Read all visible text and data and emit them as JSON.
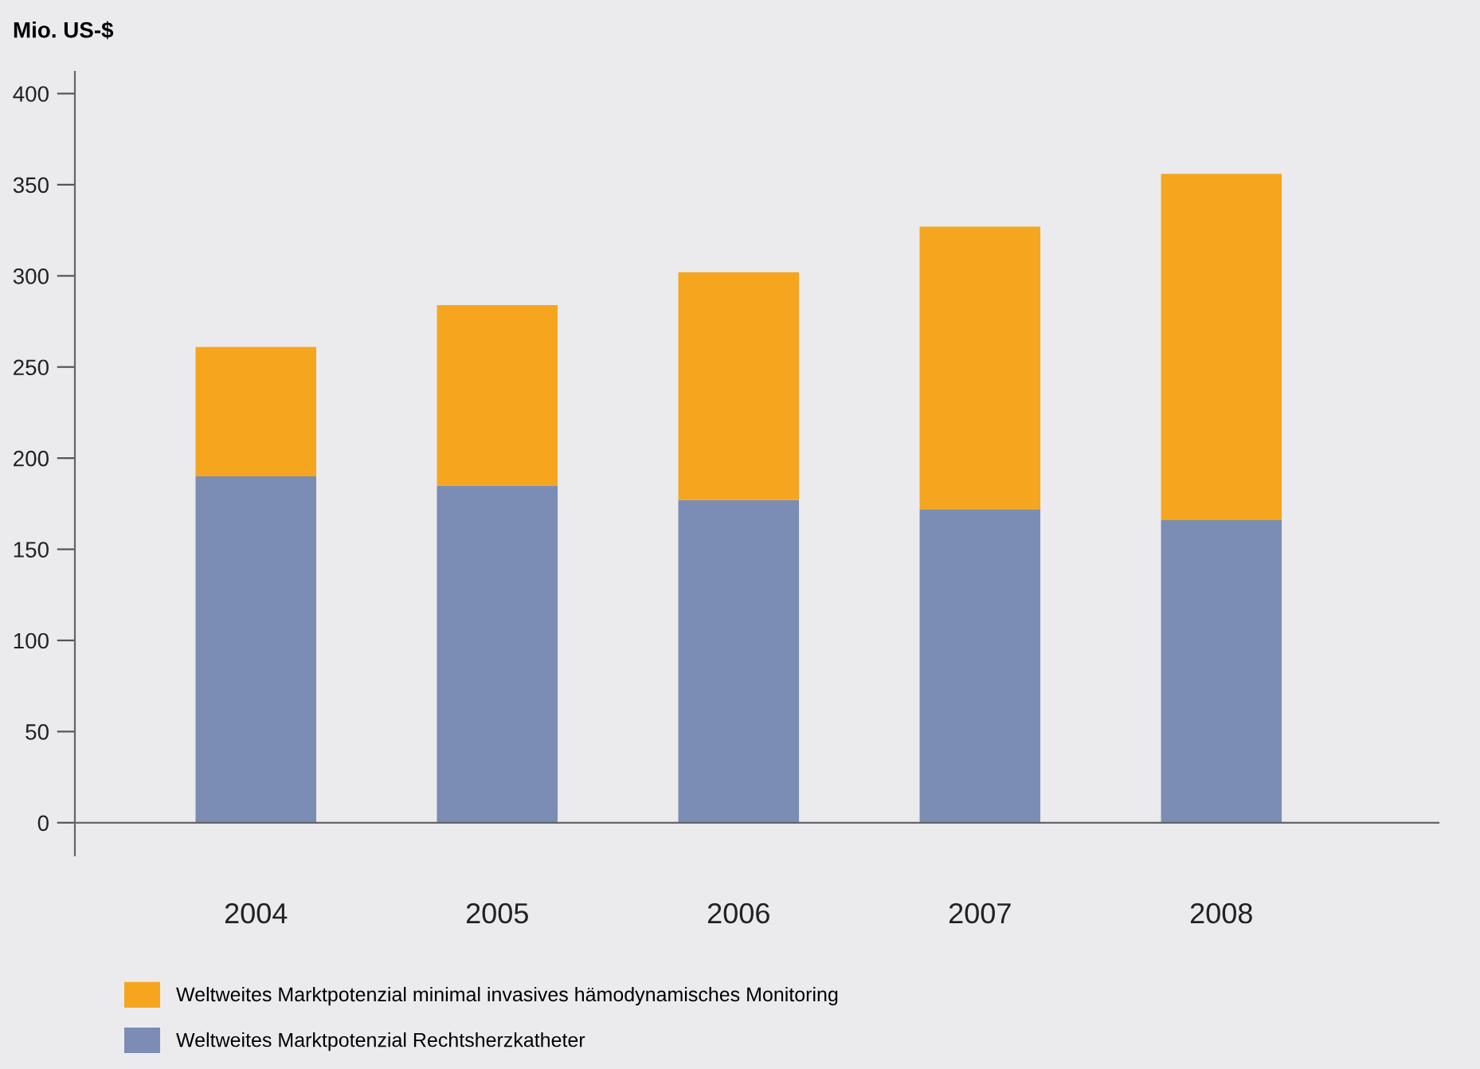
{
  "chart_data": {
    "type": "bar",
    "stacked": true,
    "ylabel": "Mio. US-$",
    "categories": [
      "2004",
      "2005",
      "2006",
      "2007",
      "2008"
    ],
    "series": [
      {
        "name": "Weltweites Marktpotenzial Rechtsherzkatheter",
        "color": "#7b8db4",
        "values": [
          190,
          185,
          177,
          172,
          166
        ]
      },
      {
        "name": "Weltweites Marktpotenzial minimal invasives hämodynamisches Monitoring",
        "color": "#f6a51f",
        "values": [
          71,
          99,
          125,
          155,
          190
        ]
      }
    ],
    "ylim": [
      -18,
      412
    ],
    "yticks": [
      0,
      50,
      100,
      150,
      200,
      250,
      300,
      350,
      400
    ],
    "legend": "bottom"
  }
}
